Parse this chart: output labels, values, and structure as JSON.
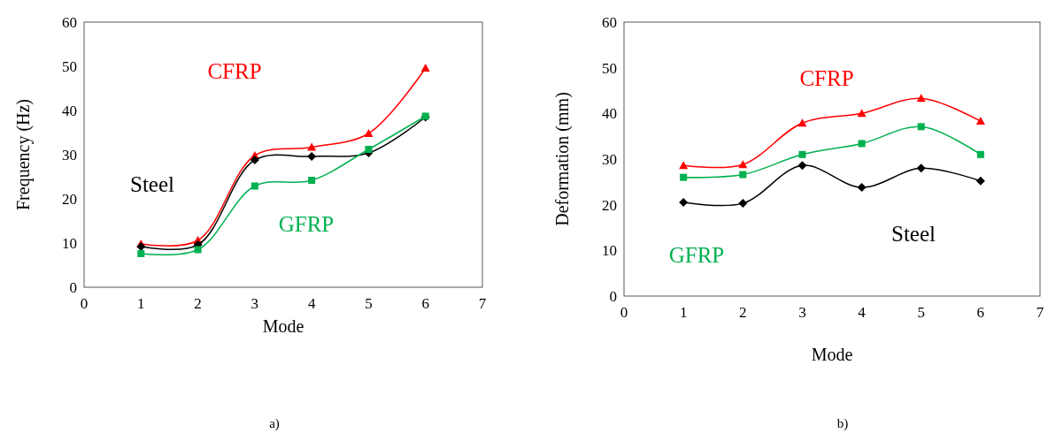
{
  "chart_data": [
    {
      "type": "line",
      "xlabel": "Mode",
      "ylabel": "Frequency (Hz)",
      "x": [
        1,
        2,
        3,
        4,
        5,
        6
      ],
      "xlim": [
        0,
        7
      ],
      "xticks": [
        0,
        1,
        2,
        3,
        4,
        5,
        6,
        7
      ],
      "ylim": [
        0,
        60
      ],
      "yticks": [
        0,
        10,
        20,
        30,
        40,
        50,
        60
      ],
      "grid": false,
      "annotations": [
        "a)"
      ],
      "series": [
        {
          "name": "CFRP",
          "color": "#ff0000",
          "marker": "triangle",
          "values": [
            9.8,
            10.6,
            29.8,
            31.7,
            34.8,
            49.6
          ]
        },
        {
          "name": "Steel",
          "color": "#000000",
          "marker": "diamond",
          "values": [
            9.2,
            9.6,
            28.8,
            29.6,
            30.4,
            38.5
          ]
        },
        {
          "name": "GFRP",
          "color": "#00b050",
          "marker": "square",
          "values": [
            7.6,
            8.5,
            22.9,
            24.2,
            31.2,
            38.7
          ]
        }
      ]
    },
    {
      "type": "line",
      "xlabel": "Mode",
      "ylabel": "Deformation (mm)",
      "x": [
        1,
        2,
        3,
        4,
        5,
        6
      ],
      "xlim": [
        0,
        7
      ],
      "xticks": [
        0,
        1,
        2,
        3,
        4,
        5,
        6,
        7
      ],
      "ylim": [
        0,
        60
      ],
      "yticks": [
        0,
        10,
        20,
        30,
        40,
        50,
        60
      ],
      "grid": false,
      "annotations": [
        "b)"
      ],
      "series": [
        {
          "name": "CFRP",
          "color": "#ff0000",
          "marker": "triangle",
          "values": [
            28.6,
            28.8,
            37.9,
            40.0,
            43.3,
            38.3
          ]
        },
        {
          "name": "GFRP",
          "color": "#00b050",
          "marker": "square",
          "values": [
            26.0,
            26.6,
            31.0,
            33.4,
            37.1,
            31.0
          ]
        },
        {
          "name": "Steel",
          "color": "#000000",
          "marker": "diamond",
          "values": [
            20.5,
            20.3,
            28.6,
            23.8,
            28.0,
            25.2
          ]
        }
      ]
    }
  ]
}
